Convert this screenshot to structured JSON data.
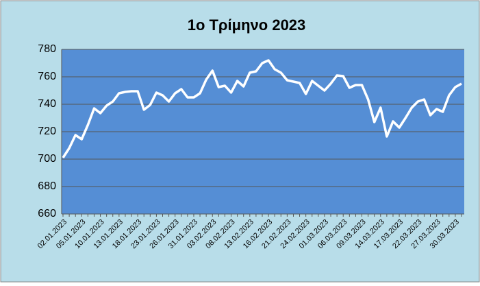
{
  "chart_data": {
    "type": "line",
    "title": "1ο Τρίμηνο 2023",
    "categories": [
      "02.01.2023",
      null,
      null,
      "05.01.2023",
      null,
      null,
      "10.01.2023",
      null,
      null,
      "13.01.2023",
      null,
      null,
      "18.01.2023",
      null,
      null,
      "23.01.2023",
      null,
      null,
      "26.01.2023",
      null,
      null,
      "31.01.2023",
      null,
      null,
      "03.02.2023",
      null,
      null,
      "08.02.2023",
      null,
      null,
      "13.02.2023",
      null,
      null,
      "16.02.2023",
      null,
      null,
      "21.02.2023",
      null,
      null,
      "24.02.2023",
      null,
      null,
      "01.03.2023",
      null,
      null,
      "06.03.2023",
      null,
      null,
      "09.03.2023",
      null,
      null,
      "14.03.2023",
      null,
      null,
      "17.03.2023",
      null,
      null,
      "22.03.2023",
      null,
      null,
      "27.03.2023",
      null,
      null,
      "30.03.2023",
      null
    ],
    "values": [
      701,
      708,
      717.5,
      714.5,
      725,
      737,
      733.5,
      739,
      742,
      748,
      749,
      749.5,
      749.5,
      736,
      739.5,
      748.5,
      746.5,
      742,
      748,
      751,
      745,
      745,
      748,
      758,
      764.5,
      752.5,
      753.5,
      748.5,
      757,
      753,
      763,
      764,
      770,
      772,
      765.5,
      763,
      757.5,
      756.5,
      755.5,
      747.5,
      757,
      753.5,
      750,
      755,
      761,
      760.5,
      752,
      754,
      754,
      743.5,
      727,
      737.5,
      716.5,
      727.5,
      723,
      730,
      737.5,
      742,
      743.5,
      732,
      736.5,
      734.5,
      746.5,
      752.5,
      755
    ],
    "color": "#ffffff",
    "ylim": [
      660,
      780
    ],
    "yticks": [
      660,
      680,
      700,
      720,
      740,
      760,
      780
    ],
    "grid": true
  }
}
